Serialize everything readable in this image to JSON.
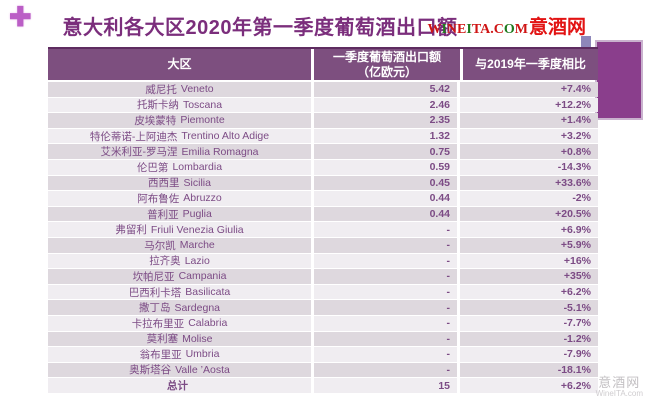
{
  "page": {
    "title": "意大利各大区2020年第一季度葡萄酒出口额",
    "plus_icon": "✚"
  },
  "logo": {
    "letters": [
      {
        "ch": "W",
        "color": "#cf1414"
      },
      {
        "ch": "I",
        "color": "#1f7a1f"
      },
      {
        "ch": "N",
        "color": "#cf1414"
      },
      {
        "ch": "E",
        "color": "#cf1414"
      },
      {
        "ch": "I",
        "color": "#1f7a1f"
      },
      {
        "ch": "T",
        "color": "#cf1414"
      },
      {
        "ch": "A",
        "color": "#cf1414"
      },
      {
        "ch": ".",
        "color": "#cf1414"
      },
      {
        "ch": "C",
        "color": "#cf1414"
      },
      {
        "ch": "O",
        "color": "#1f7a1f"
      },
      {
        "ch": "M",
        "color": "#cf1414"
      }
    ],
    "cn": "意酒网"
  },
  "table": {
    "headers": {
      "region": "大区",
      "value_line1": "一季度葡萄酒出口额",
      "value_line2": "（亿欧元）",
      "change": "与2019年一季度相比"
    },
    "rows": [
      {
        "cn": "威尼托",
        "en": "Veneto",
        "value": "5.42",
        "change": "+7.4%"
      },
      {
        "cn": "托斯卡纳",
        "en": "Toscana",
        "value": "2.46",
        "change": "+12.2%"
      },
      {
        "cn": "皮埃蒙特",
        "en": "Piemonte",
        "value": "2.35",
        "change": "+1.4%"
      },
      {
        "cn": "特伦蒂诺-上阿迪杰",
        "en": "Trentino Alto Adige",
        "value": "1.32",
        "change": "+3.2%"
      },
      {
        "cn": "艾米利亚-罗马涅",
        "en": "Emilia Romagna",
        "value": "0.75",
        "change": "+0.8%"
      },
      {
        "cn": "伦巴第",
        "en": "Lombardia",
        "value": "0.59",
        "change": "-14.3%"
      },
      {
        "cn": "西西里",
        "en": "Sicilia",
        "value": "0.45",
        "change": "+33.6%"
      },
      {
        "cn": "阿布鲁佐",
        "en": "Abruzzo",
        "value": "0.44",
        "change": "-2%"
      },
      {
        "cn": "普利亚",
        "en": "Puglia",
        "value": "0.44",
        "change": "+20.5%"
      },
      {
        "cn": "弗留利",
        "en": "Friuli Venezia Giulia",
        "value": "-",
        "change": "+6.9%"
      },
      {
        "cn": "马尔凯",
        "en": "Marche",
        "value": "-",
        "change": "+5.9%"
      },
      {
        "cn": "拉齐奥",
        "en": "Lazio",
        "value": "-",
        "change": "+16%"
      },
      {
        "cn": "坎帕尼亚",
        "en": "Campania",
        "value": "-",
        "change": "+35%"
      },
      {
        "cn": "巴西利卡塔",
        "en": "Basilicata",
        "value": "-",
        "change": "+6.2%"
      },
      {
        "cn": "撒丁岛",
        "en": "Sardegna",
        "value": "-",
        "change": "-5.1%"
      },
      {
        "cn": "卡拉布里亚",
        "en": "Calabria",
        "value": "-",
        "change": "-7.7%"
      },
      {
        "cn": "莫利塞",
        "en": "Molise",
        "value": "-",
        "change": "-1.2%"
      },
      {
        "cn": "翁布里亚",
        "en": "Umbria",
        "value": "-",
        "change": "-7.9%"
      },
      {
        "cn": "奥斯塔谷",
        "en": "Valle ’Aosta",
        "value": "-",
        "change": "-18.1%"
      },
      {
        "cn": "总计",
        "en": "",
        "value": "15",
        "change": "+6.2%",
        "total": true
      }
    ]
  },
  "watermark": {
    "cn": "意酒网",
    "site": "WineITA.com"
  },
  "colors": {
    "title_text": "#7b2e7c",
    "header_bg": "#7d4f7f",
    "header_text": "#ffffff",
    "row_odd_bg": "#ded8de",
    "row_even_bg": "#f0edf1",
    "row_text": "#7c4b85",
    "deco_rect": "#8a3e8c",
    "deco_square": "#8e87ba",
    "logo_red": "#cf1414",
    "logo_green": "#1f7a1f",
    "plus_icon": "#bb5ec6"
  },
  "chart_data": {
    "type": "table",
    "title": "意大利各大区2020年第一季度葡萄酒出口额",
    "columns": [
      "大区",
      "一季度葡萄酒出口额（亿欧元）",
      "与2019年一季度相比"
    ],
    "rows": [
      [
        "威尼托 Veneto",
        "5.42",
        "+7.4%"
      ],
      [
        "托斯卡纳 Toscana",
        "2.46",
        "+12.2%"
      ],
      [
        "皮埃蒙特 Piemonte",
        "2.35",
        "+1.4%"
      ],
      [
        "特伦蒂诺-上阿迪杰 Trentino Alto Adige",
        "1.32",
        "+3.2%"
      ],
      [
        "艾米利亚-罗马涅 Emilia Romagna",
        "0.75",
        "+0.8%"
      ],
      [
        "伦巴第 Lombardia",
        "0.59",
        "-14.3%"
      ],
      [
        "西西里 Sicilia",
        "0.45",
        "+33.6%"
      ],
      [
        "阿布鲁佐 Abruzzo",
        "0.44",
        "-2%"
      ],
      [
        "普利亚 Puglia",
        "0.44",
        "+20.5%"
      ],
      [
        "弗留利 Friuli Venezia Giulia",
        "-",
        "+6.9%"
      ],
      [
        "马尔凯 Marche",
        "-",
        "+5.9%"
      ],
      [
        "拉齐奥 Lazio",
        "-",
        "+16%"
      ],
      [
        "坎帕尼亚 Campania",
        "-",
        "+35%"
      ],
      [
        "巴西利卡塔 Basilicata",
        "-",
        "+6.2%"
      ],
      [
        "撒丁岛 Sardegna",
        "-",
        "-5.1%"
      ],
      [
        "卡拉布里亚 Calabria",
        "-",
        "-7.7%"
      ],
      [
        "莫利塞 Molise",
        "-",
        "-1.2%"
      ],
      [
        "翁布里亚 Umbria",
        "-",
        "-7.9%"
      ],
      [
        "奥斯塔谷 Valle ’Aosta",
        "-",
        "-18.1%"
      ],
      [
        "总计",
        "15",
        "+6.2%"
      ]
    ]
  }
}
